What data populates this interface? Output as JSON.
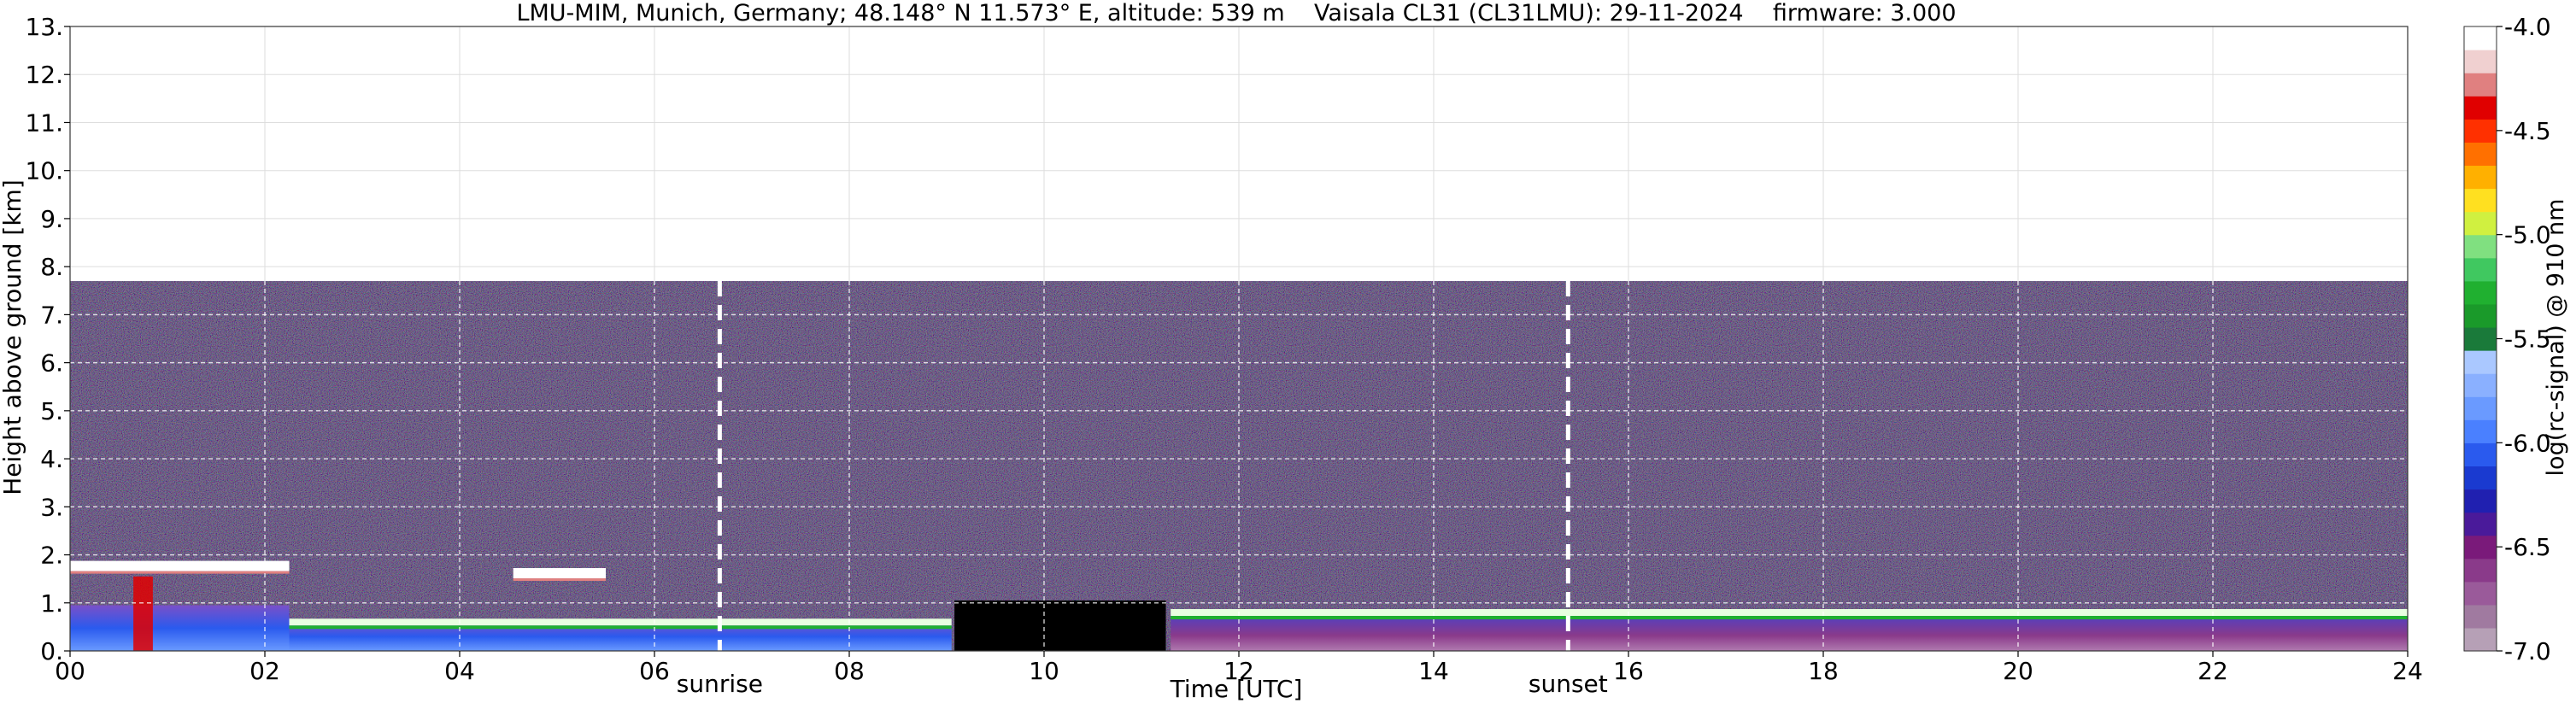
{
  "chart_data": {
    "type": "heatmap",
    "title": "LMU-MIM, Munich, Germany; 48.148° N 11.573° E, altitude: 539 m    Vaisala CL31 (CL31LMU): 29-11-2024    firmware: 3.000",
    "xlabel": "Time [UTC]",
    "ylabel": "Height above ground [km]",
    "xlim": [
      0,
      24
    ],
    "ylim": [
      0,
      13
    ],
    "x_ticks": [
      {
        "value": 0,
        "label": "00"
      },
      {
        "value": 2,
        "label": "02"
      },
      {
        "value": 4,
        "label": "04"
      },
      {
        "value": 6,
        "label": "06"
      },
      {
        "value": 8,
        "label": "08"
      },
      {
        "value": 10,
        "label": "10"
      },
      {
        "value": 12,
        "label": "12"
      },
      {
        "value": 14,
        "label": "14"
      },
      {
        "value": 16,
        "label": "16"
      },
      {
        "value": 18,
        "label": "18"
      },
      {
        "value": 20,
        "label": "20"
      },
      {
        "value": 22,
        "label": "22"
      },
      {
        "value": 24,
        "label": "24"
      }
    ],
    "y_ticks": [
      {
        "value": 0,
        "label": "0."
      },
      {
        "value": 1,
        "label": "1."
      },
      {
        "value": 2,
        "label": "2."
      },
      {
        "value": 3,
        "label": "3."
      },
      {
        "value": 4,
        "label": "4."
      },
      {
        "value": 5,
        "label": "5."
      },
      {
        "value": 6,
        "label": "6."
      },
      {
        "value": 7,
        "label": "7."
      },
      {
        "value": 8,
        "label": "8."
      },
      {
        "value": 9,
        "label": "9."
      },
      {
        "value": 10,
        "label": "10."
      },
      {
        "value": 11,
        "label": "11."
      },
      {
        "value": 12,
        "label": "12."
      },
      {
        "value": 13,
        "label": "13."
      }
    ],
    "grid": true,
    "data_top_km": 7.7,
    "sun_markers": [
      {
        "label": "sunrise",
        "time": 6.67
      },
      {
        "label": "sunset",
        "time": 15.38
      }
    ],
    "cloud_layers": [
      {
        "start": 0.0,
        "end": 2.25,
        "height_km": 1.75
      },
      {
        "start": 4.55,
        "end": 5.5,
        "height_km": 1.6
      },
      {
        "start": 2.2,
        "end": 9.05,
        "height_km": 0.6,
        "note": "boundary layer top"
      },
      {
        "start": 11.3,
        "end": 24.0,
        "height_km": 0.8,
        "note": "aerosol layer top"
      }
    ],
    "colorbar": {
      "label": "log(rc-signal) @ 910 nm",
      "min": -7.0,
      "max": -4.0,
      "ticks": [
        {
          "value": -7.0,
          "label": "-7.0"
        },
        {
          "value": -6.5,
          "label": "-6.5"
        },
        {
          "value": -6.0,
          "label": "-6.0"
        },
        {
          "value": -5.5,
          "label": "-5.5"
        },
        {
          "value": -5.0,
          "label": "-5.0"
        },
        {
          "value": -4.5,
          "label": "-4.5"
        },
        {
          "value": -4.0,
          "label": "-4.0"
        }
      ],
      "colors": [
        "#b6a0b6",
        "#a07aa0",
        "#9a5a9a",
        "#8a3a8a",
        "#7a1a7a",
        "#4a1a9a",
        "#2020b0",
        "#1a3ad0",
        "#2a5aee",
        "#4a80ff",
        "#6a9aff",
        "#8ab0ff",
        "#aac8ff",
        "#1a7a3a",
        "#1a9a2a",
        "#20b030",
        "#40c860",
        "#80e080",
        "#d0f040",
        "#ffe020",
        "#ffb000",
        "#ff7000",
        "#ff3000",
        "#e00000",
        "#e08080",
        "#f0d0d0",
        "#ffffff"
      ]
    }
  }
}
